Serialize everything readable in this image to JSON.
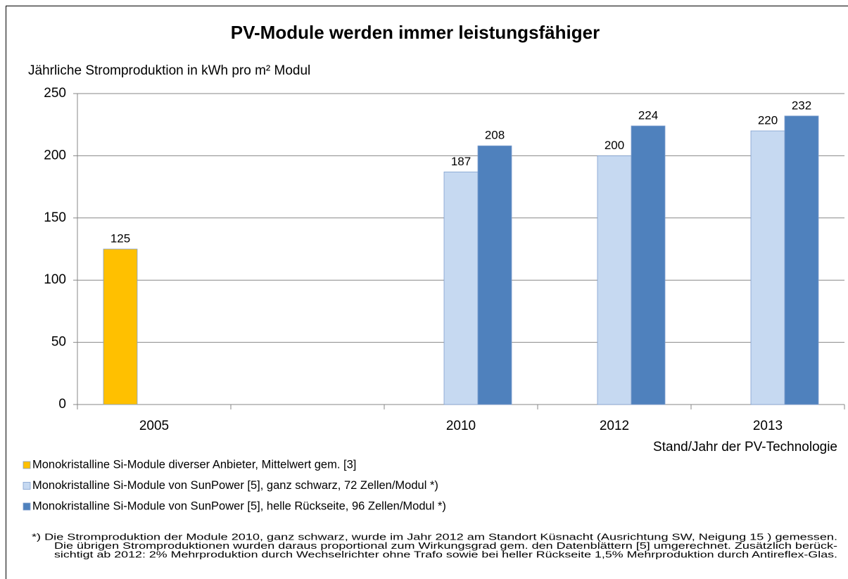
{
  "chart_data": {
    "type": "bar",
    "title": "PV-Module werden immer leistungsfähiger",
    "y_label": "Jährliche Stromproduktion in kWh pro m² Modul",
    "x_label": "Stand/Jahr der PV-Technologie",
    "categories": [
      "2005",
      null,
      "2010",
      "2012",
      "2013"
    ],
    "series": [
      {
        "name": "Monokristalline Si-Module diverser Anbieter, Mittelwert gem. [3]",
        "color": "#ffc000",
        "values": [
          125,
          null,
          null,
          null,
          null
        ]
      },
      {
        "name": "Monokristalline Si-Module von SunPower [5], ganz schwarz, 72 Zellen/Modul *)",
        "color": "#c6d9f1",
        "values": [
          null,
          null,
          187,
          200,
          220
        ]
      },
      {
        "name": "Monokristalline Si-Module von SunPower [5], helle Rückseite, 96 Zellen/Modul *)",
        "color": "#4f81bd",
        "values": [
          null,
          null,
          208,
          224,
          232
        ]
      }
    ],
    "ylim": [
      0,
      250
    ],
    "yticks": [
      0,
      50,
      100,
      150,
      200,
      250
    ],
    "grid": true,
    "footnote": [
      "*)  Die Stromproduktion der Module 2010, ganz schwarz, wurde im Jahr 2012 am Standort Küsnacht (Ausrichtung SW, Neigung 15 ) gemessen.",
      "Die übrigen Stromproduktionen wurden daraus proportional zum Wirkungsgrad gem. den Datenblättern [5] umgerechnet. Zusätzlich berück-",
      "sichtigt ab 2012: 2% Mehrproduktion durch Wechselrichter ohne Trafo sowie bei heller Rückseite 1,5% Mehrproduktion durch Antireflex-Glas."
    ]
  }
}
